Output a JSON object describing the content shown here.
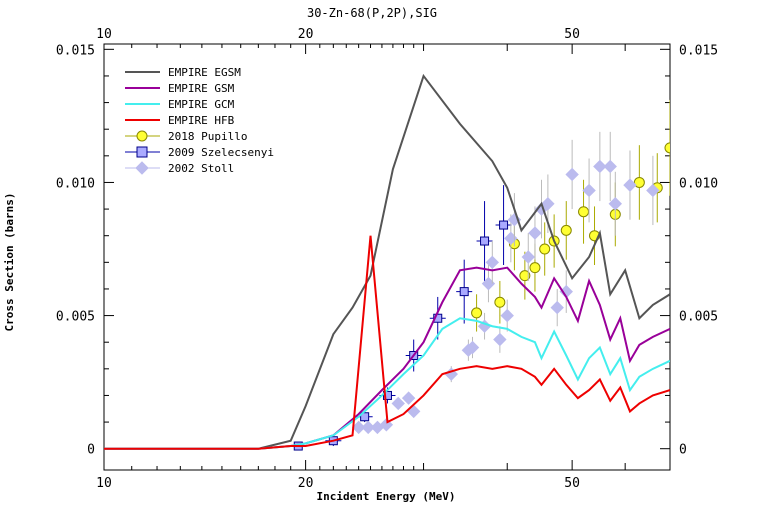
{
  "chart_data": {
    "type": "line",
    "title": "30-Zn-68(P,2P),SIG",
    "xlabel": "Incident Energy (MeV)",
    "ylabel": "Cross Section (barns)",
    "xscale": "log",
    "xlim": [
      10,
      70
    ],
    "ylim": [
      -0.0008,
      0.0152
    ],
    "x_ticks": [
      10,
      20,
      50
    ],
    "x_tick_labels": [
      "10",
      "20",
      "50"
    ],
    "y_ticks": [
      0,
      0.005,
      0.01,
      0.015
    ],
    "y_tick_labels": [
      "0",
      "0.005",
      "0.010",
      "0.015"
    ],
    "legend_position": "top-left",
    "series": [
      {
        "name": "EMPIRE EGSM",
        "kind": "line",
        "color": "#555555",
        "x": [
          10,
          13,
          17,
          19,
          20,
          22,
          23.5,
          25,
          27,
          30,
          34,
          38,
          40,
          42,
          45,
          47,
          50,
          53,
          55,
          57,
          60,
          63,
          66,
          70
        ],
        "y": [
          0,
          0,
          0,
          0.0003,
          0.0016,
          0.0043,
          0.0053,
          0.0065,
          0.0105,
          0.014,
          0.0122,
          0.0108,
          0.0098,
          0.0082,
          0.0092,
          0.0078,
          0.0064,
          0.0072,
          0.0081,
          0.0058,
          0.0067,
          0.0049,
          0.0054,
          0.0058
        ]
      },
      {
        "name": "EMPIRE GSM",
        "kind": "line",
        "color": "#990099",
        "x": [
          10,
          17,
          19,
          20,
          22,
          24,
          26,
          28,
          30,
          32,
          34,
          36,
          38,
          40,
          42,
          44,
          45,
          47,
          49,
          51,
          53,
          55,
          57,
          59,
          61,
          63,
          66,
          70
        ],
        "y": [
          0,
          0,
          0.0001,
          0.0002,
          0.0005,
          0.0013,
          0.0022,
          0.003,
          0.004,
          0.0055,
          0.0067,
          0.0068,
          0.0067,
          0.0068,
          0.0062,
          0.0057,
          0.0053,
          0.0064,
          0.0057,
          0.0048,
          0.0063,
          0.0054,
          0.0041,
          0.0049,
          0.0033,
          0.0039,
          0.0042,
          0.0045
        ]
      },
      {
        "name": "EMPIRE GCM",
        "kind": "line",
        "color": "#44eeee",
        "x": [
          10,
          17,
          19,
          20,
          22,
          24,
          26,
          28,
          30,
          32,
          34,
          36,
          38,
          40,
          42,
          44,
          45,
          47,
          49,
          51,
          53,
          55,
          57,
          59,
          61,
          63,
          66,
          70
        ],
        "y": [
          0,
          0,
          0.0001,
          0.0002,
          0.0005,
          0.0012,
          0.002,
          0.0028,
          0.0035,
          0.0045,
          0.0049,
          0.0048,
          0.0046,
          0.0045,
          0.0042,
          0.004,
          0.0034,
          0.0044,
          0.0035,
          0.0026,
          0.0034,
          0.0038,
          0.0028,
          0.0034,
          0.0022,
          0.0027,
          0.003,
          0.0033
        ]
      },
      {
        "name": "EMPIRE HFB",
        "kind": "line",
        "color": "#ee0000",
        "x": [
          10,
          17,
          19,
          20,
          22,
          23.5,
          25,
          26.5,
          28,
          30,
          32,
          34,
          36,
          38,
          40,
          42,
          44,
          45,
          47,
          49,
          51,
          53,
          55,
          57,
          59,
          61,
          63,
          66,
          70
        ],
        "y": [
          0,
          0,
          0.0001,
          0.0001,
          0.0003,
          0.0005,
          0.008,
          0.001,
          0.0013,
          0.002,
          0.0028,
          0.003,
          0.0031,
          0.003,
          0.0031,
          0.003,
          0.0027,
          0.0024,
          0.003,
          0.0024,
          0.0019,
          0.0022,
          0.0026,
          0.0018,
          0.0023,
          0.0014,
          0.0017,
          0.002,
          0.0022
        ]
      },
      {
        "name": "2018 Pupillo",
        "kind": "points",
        "marker": "circle",
        "color": "#ffff33",
        "edge": "#888800",
        "x": [
          36,
          39,
          41,
          42.5,
          44,
          45.5,
          47,
          49,
          52,
          54,
          58,
          63,
          67,
          70
        ],
        "y": [
          0.0051,
          0.0055,
          0.0077,
          0.0065,
          0.0068,
          0.0075,
          0.0078,
          0.0082,
          0.0089,
          0.008,
          0.0088,
          0.01,
          0.0098,
          0.0113
        ],
        "yerr": [
          0.0007,
          0.0008,
          0.001,
          0.0009,
          0.0009,
          0.001,
          0.001,
          0.0011,
          0.0012,
          0.0011,
          0.0012,
          0.0014,
          0.0013,
          0.0018
        ]
      },
      {
        "name": "2009 Szelecsenyi",
        "kind": "points",
        "marker": "square",
        "color": "#aaaaff",
        "edge": "#000088",
        "x": [
          19.5,
          22,
          24.5,
          26.5,
          29,
          31.5,
          34.5,
          37,
          39.5
        ],
        "y": [
          0.0001,
          0.0003,
          0.0012,
          0.002,
          0.0035,
          0.0049,
          0.0059,
          0.0078,
          0.0084
        ],
        "yerr": [
          0.0001,
          0.0002,
          0.0002,
          0.0003,
          0.0006,
          0.0008,
          0.0012,
          0.0015,
          0.0015
        ]
      },
      {
        "name": "2002 Stoll",
        "kind": "points",
        "marker": "diamond",
        "color": "#bbbbee",
        "edge": "#bbbbee",
        "x": [
          24,
          24.8,
          25.6,
          26.4,
          27.5,
          28.5,
          29,
          33,
          35,
          35.5,
          37,
          37.5,
          38,
          39,
          40,
          40.5,
          41,
          43,
          44,
          45,
          46,
          47.5,
          49,
          50,
          53,
          55,
          57,
          58,
          61,
          66
        ],
        "y": [
          0.0008,
          0.0008,
          0.0008,
          0.0009,
          0.0017,
          0.0019,
          0.0014,
          0.0028,
          0.0037,
          0.0038,
          0.0046,
          0.0062,
          0.007,
          0.0041,
          0.005,
          0.0079,
          0.0086,
          0.0072,
          0.0081,
          0.009,
          0.0092,
          0.0053,
          0.0059,
          0.0103,
          0.0097,
          0.0106,
          0.0106,
          0.0092,
          0.0099,
          0.0097
        ],
        "yerr": [
          0.0001,
          0.0001,
          0.0001,
          0.0001,
          0.0002,
          0.0002,
          0.0002,
          0.0003,
          0.0004,
          0.0004,
          0.0005,
          0.0007,
          0.0008,
          0.0005,
          0.0006,
          0.0009,
          0.001,
          0.0009,
          0.001,
          0.0011,
          0.0011,
          0.0007,
          0.0008,
          0.0013,
          0.0012,
          0.0013,
          0.0013,
          0.0012,
          0.0013,
          0.0013
        ]
      }
    ]
  }
}
